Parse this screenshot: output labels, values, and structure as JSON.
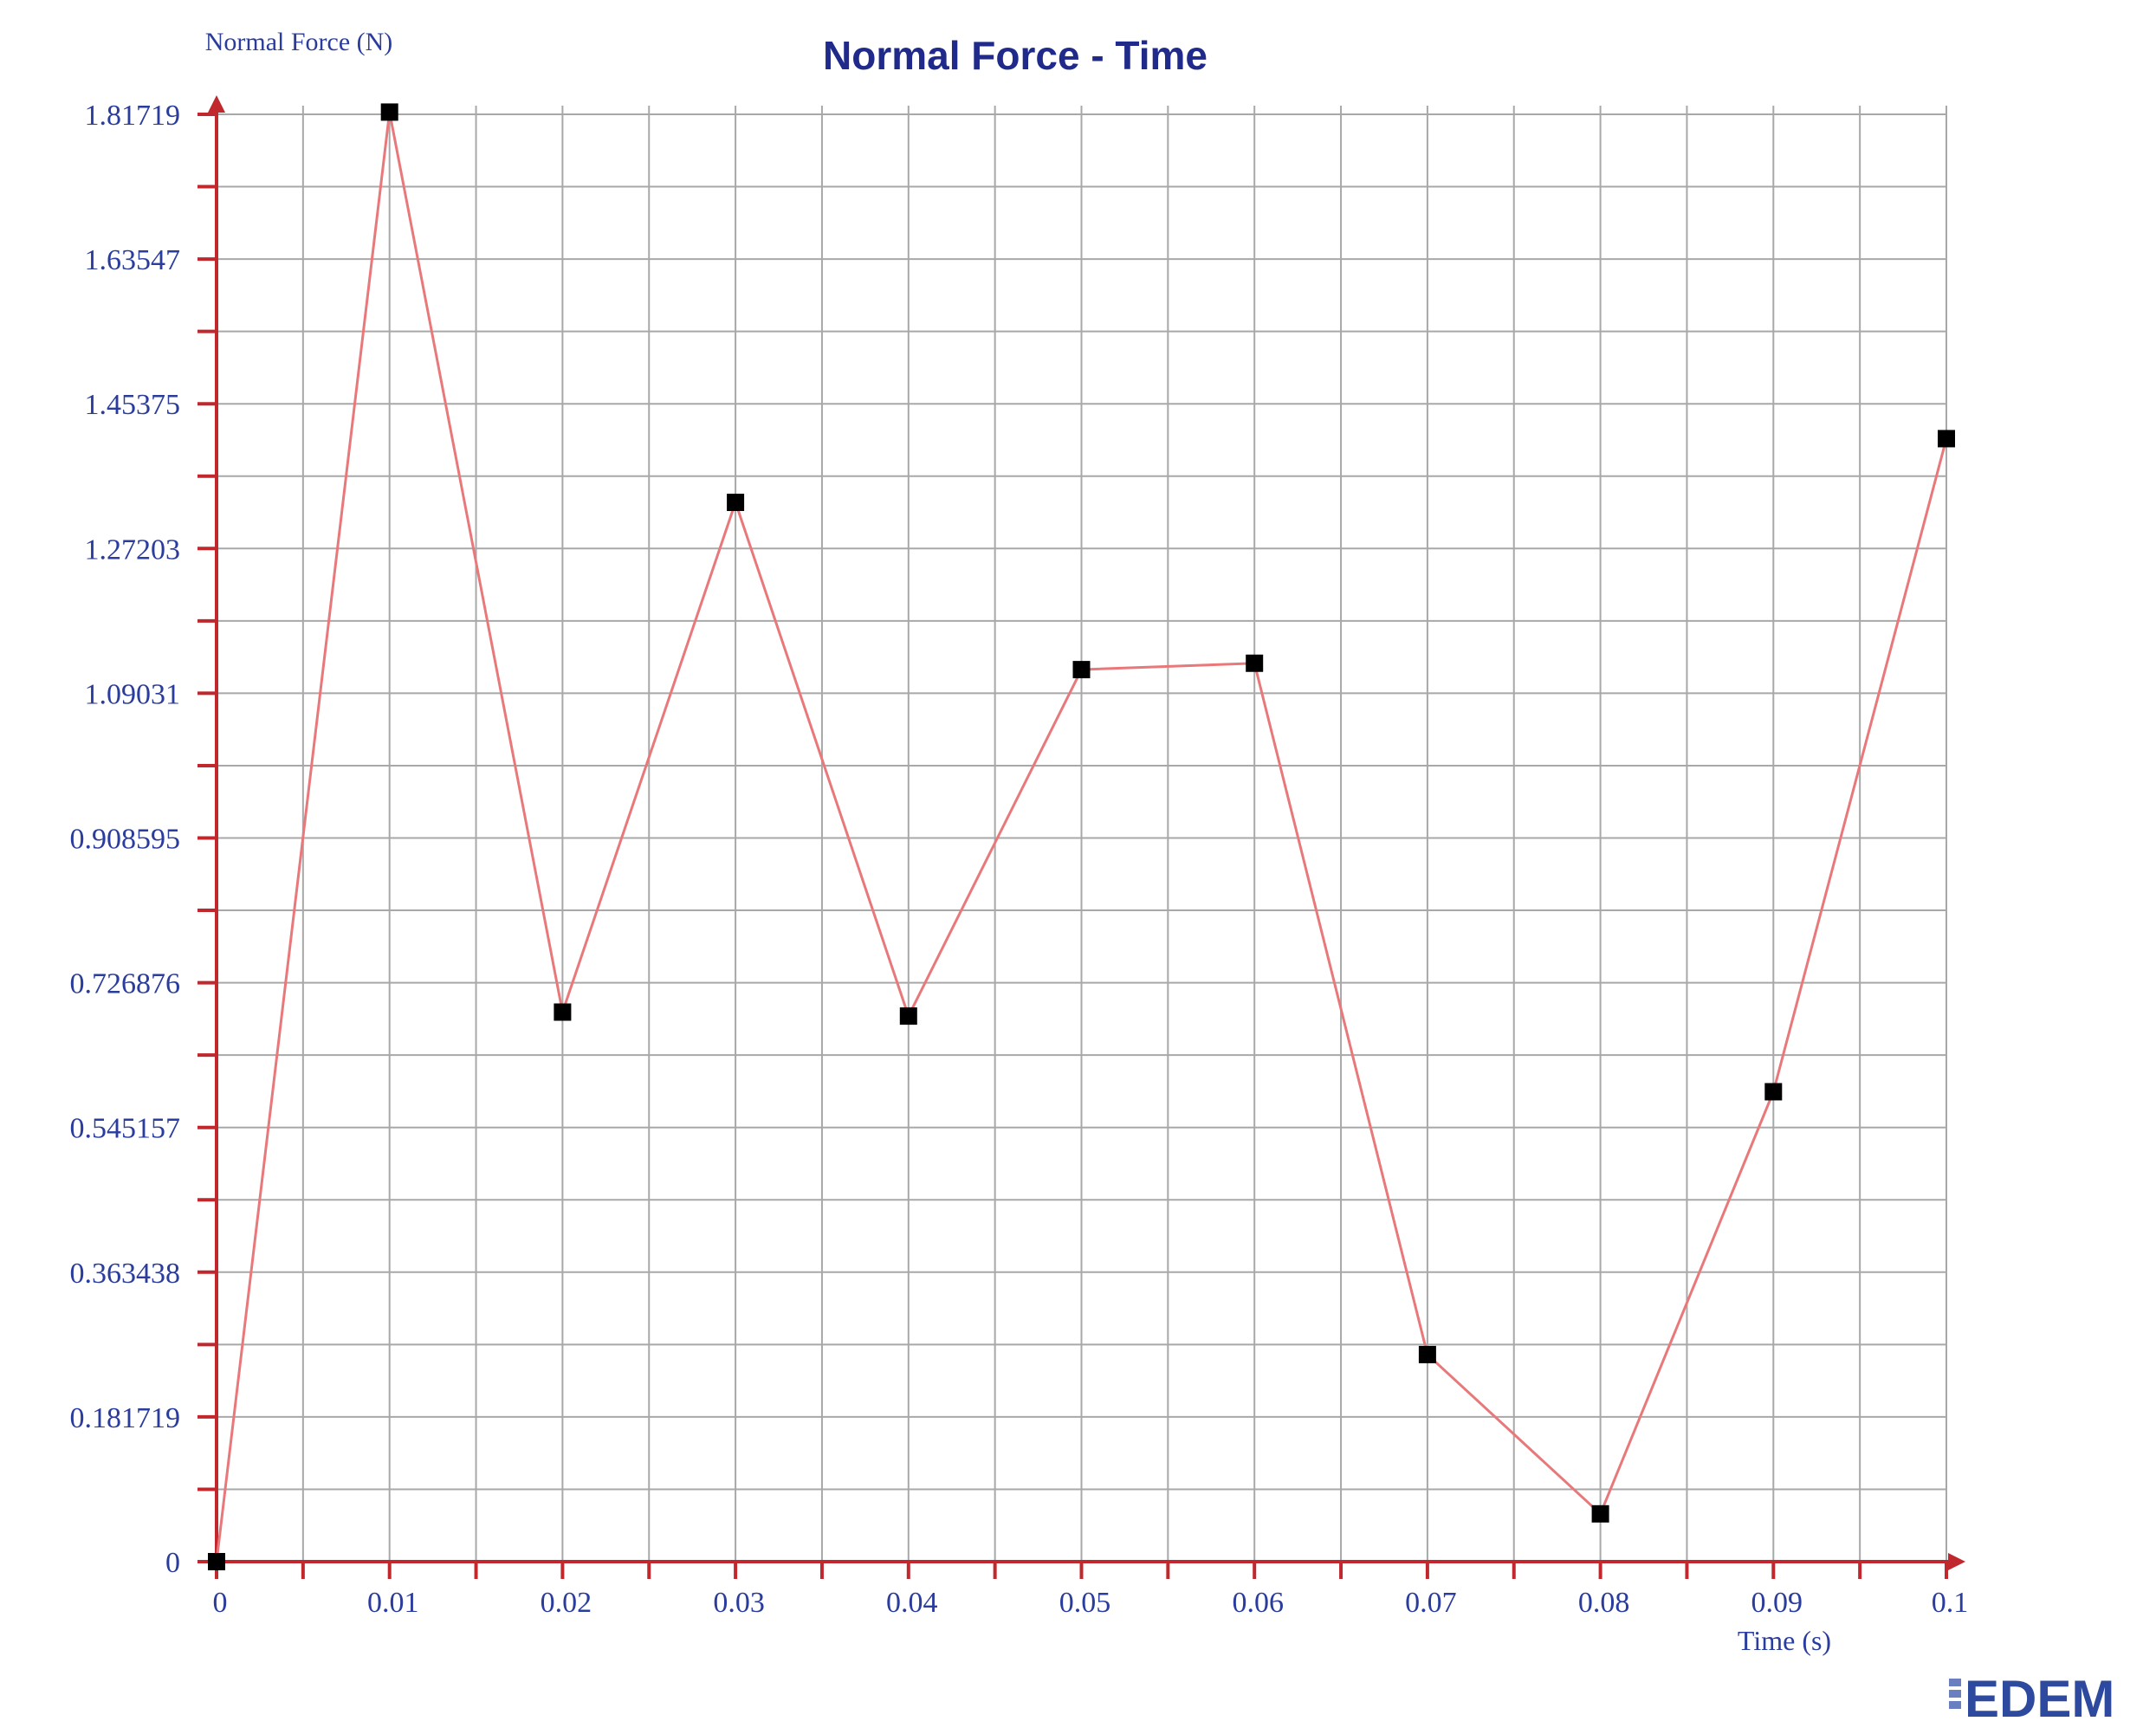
{
  "chart_data": {
    "type": "line",
    "title": "Normal Force - Time",
    "ylabel": "Normal Force (N)",
    "xlabel": "Time (s)",
    "x_ticks": [
      "0",
      "0.01",
      "0.02",
      "0.03",
      "0.04",
      "0.05",
      "0.06",
      "0.07",
      "0.08",
      "0.09",
      "0.1"
    ],
    "y_ticks": [
      "0",
      "0.181719",
      "0.363438",
      "0.545157",
      "0.726876",
      "0.908595",
      "1.09031",
      "1.27203",
      "1.45375",
      "1.63547",
      "1.81719"
    ],
    "xlim": [
      0,
      0.1
    ],
    "ylim": [
      0,
      1.81719
    ],
    "grid": true,
    "series": [
      {
        "x": [
          0,
          0.01,
          0.02,
          0.03,
          0.04,
          0.05,
          0.06,
          0.07,
          0.08,
          0.09,
          0.1
        ],
        "y": [
          0,
          1.82,
          0.69,
          1.33,
          0.685,
          1.12,
          1.128,
          0.26,
          0.06,
          0.59,
          1.41
        ]
      }
    ],
    "colors": {
      "line": "#e8787a",
      "marker": "#000000",
      "axis": "#c0282d",
      "grid": "#a8a8a8",
      "tick_label": "#2a3c9c",
      "title": "#1f2a8a"
    }
  },
  "logo": {
    "text": "EDEM"
  }
}
